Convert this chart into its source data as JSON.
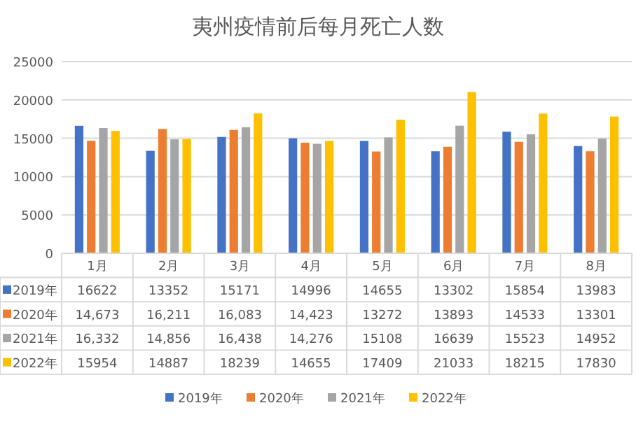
{
  "chart_data": {
    "type": "bar",
    "title": "夷州疫情前后每月死亡人数",
    "categories": [
      "1月",
      "2月",
      "3月",
      "4月",
      "5月",
      "6月",
      "7月",
      "8月"
    ],
    "series": [
      {
        "name": "2019年",
        "color": "#4472c4",
        "values": [
          16622,
          13352,
          15171,
          14996,
          14655,
          13302,
          15854,
          13983
        ],
        "value_labels": [
          "16622",
          "13352",
          "15171",
          "14996",
          "14655",
          "13302",
          "15854",
          "13983"
        ]
      },
      {
        "name": "2020年",
        "color": "#ed7d31",
        "values": [
          14673,
          16211,
          16083,
          14423,
          13272,
          13893,
          14533,
          13301
        ],
        "value_labels": [
          "14,673",
          "16,211",
          "16,083",
          "14,423",
          "13272",
          "13893",
          "14533",
          "13301"
        ]
      },
      {
        "name": "2021年",
        "color": "#a5a5a5",
        "values": [
          16332,
          14856,
          16438,
          14276,
          15108,
          16639,
          15523,
          14952
        ],
        "value_labels": [
          "16,332",
          "14,856",
          "16,438",
          "14,276",
          "15108",
          "16639",
          "15523",
          "14952"
        ]
      },
      {
        "name": "2022年",
        "color": "#ffc000",
        "values": [
          15954,
          14887,
          18239,
          14655,
          17409,
          21033,
          18215,
          17830
        ],
        "value_labels": [
          "15954",
          "14887",
          "18239",
          "14655",
          "17409",
          "21033",
          "18215",
          "17830"
        ]
      }
    ],
    "ylim": [
      0,
      25000
    ],
    "yticks": [
      0,
      5000,
      10000,
      15000,
      20000,
      25000
    ],
    "grid": "y",
    "legend": "bottom"
  }
}
